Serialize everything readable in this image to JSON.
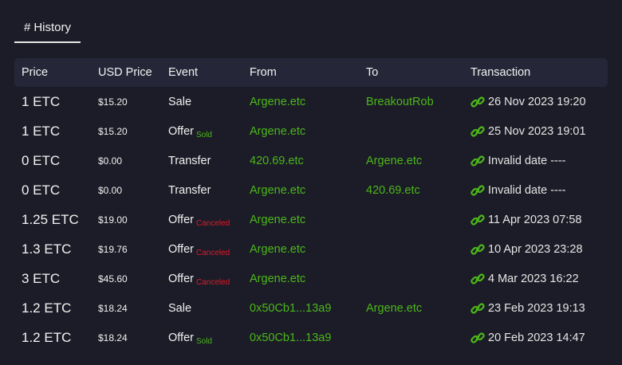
{
  "tab": {
    "icon": "hash-icon",
    "label": "History"
  },
  "colors": {
    "accent_green": "#4cb71a",
    "canceled_red": "#e0182a",
    "background": "#1b1c27",
    "header_bg": "#252738"
  },
  "columns": [
    "Price",
    "USD Price",
    "Event",
    "From",
    "To",
    "Transaction"
  ],
  "rows": [
    {
      "price": "1 ETC",
      "usd": "$15.20",
      "event": "Sale",
      "status": "",
      "from": "Argene.etc",
      "to": "BreakoutRob",
      "transaction": "26 Nov 2023 19:20"
    },
    {
      "price": "1 ETC",
      "usd": "$15.20",
      "event": "Offer",
      "status": "Sold",
      "from": "Argene.etc",
      "to": "",
      "transaction": "25 Nov 2023 19:01"
    },
    {
      "price": "0 ETC",
      "usd": "$0.00",
      "event": "Transfer",
      "status": "",
      "from": "420.69.etc",
      "to": "Argene.etc",
      "transaction": "Invalid date ----"
    },
    {
      "price": "0 ETC",
      "usd": "$0.00",
      "event": "Transfer",
      "status": "",
      "from": "Argene.etc",
      "to": "420.69.etc",
      "transaction": "Invalid date ----"
    },
    {
      "price": "1.25 ETC",
      "usd": "$19.00",
      "event": "Offer",
      "status": "Canceled",
      "from": "Argene.etc",
      "to": "",
      "transaction": "11 Apr 2023 07:58"
    },
    {
      "price": "1.3 ETC",
      "usd": "$19.76",
      "event": "Offer",
      "status": "Canceled",
      "from": "Argene.etc",
      "to": "",
      "transaction": "10 Apr 2023 23:28"
    },
    {
      "price": "3 ETC",
      "usd": "$45.60",
      "event": "Offer",
      "status": "Canceled",
      "from": "Argene.etc",
      "to": "",
      "transaction": "4 Mar 2023 16:22"
    },
    {
      "price": "1.2 ETC",
      "usd": "$18.24",
      "event": "Sale",
      "status": "",
      "from": "0x50Cb1...13a9",
      "to": "Argene.etc",
      "transaction": "23 Feb 2023 19:13"
    },
    {
      "price": "1.2 ETC",
      "usd": "$18.24",
      "event": "Offer",
      "status": "Sold",
      "from": "0x50Cb1...13a9",
      "to": "",
      "transaction": "20 Feb 2023 14:47"
    }
  ]
}
